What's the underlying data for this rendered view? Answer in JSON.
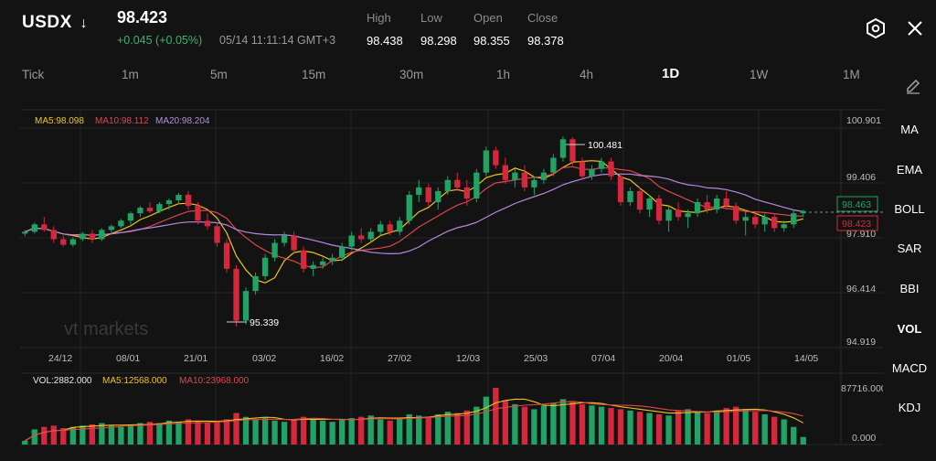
{
  "header": {
    "symbol": "USDX",
    "price": "98.423",
    "change": "+0.045 (+0.05%)",
    "time": "05/14 11:11:14 GMT+3",
    "stats": [
      {
        "label": "High",
        "value": "98.438"
      },
      {
        "label": "Low",
        "value": "98.298"
      },
      {
        "label": "Open",
        "value": "98.355"
      },
      {
        "label": "Close",
        "value": "98.378"
      }
    ]
  },
  "timeframes": [
    "Tick",
    "1m",
    "5m",
    "15m",
    "30m",
    "1h",
    "4h",
    "1D",
    "1W",
    "1M"
  ],
  "active_timeframe": "1D",
  "indicators": [
    "MA",
    "EMA",
    "BOLL",
    "SAR",
    "BBI",
    "VOL",
    "MACD",
    "KDJ"
  ],
  "active_indicator": "VOL",
  "watermark": "vt markets",
  "colors": {
    "up": "#21a366",
    "down": "#d6283d",
    "ma5": "#f0c419",
    "ma10": "#e0454c",
    "ma20": "#b58ae0"
  },
  "price_legend": {
    "ma5": "MA5:98.098",
    "ma10": "MA10:98.112",
    "ma20": "MA20:98.204"
  },
  "volume_legend": {
    "vol": "VOL:2882.000",
    "ma5": "MA5:12568.000",
    "ma10": "MA10:23968.000"
  },
  "chart_data": {
    "type": "candlestick",
    "y_ticks": [
      "100.901",
      "99.406",
      "97.910",
      "96.414",
      "94.919"
    ],
    "ylim": [
      94.919,
      100.901
    ],
    "x_ticks": [
      "24/12",
      "08/01",
      "21/01",
      "03/02",
      "16/02",
      "27/02",
      "12/03",
      "25/03",
      "07/04",
      "20/04",
      "01/05",
      "14/05"
    ],
    "annotations": {
      "high": "100.481",
      "low": "95.339"
    },
    "price_tags": [
      {
        "label": "98.463",
        "color": "up"
      },
      {
        "label": "98.423",
        "color": "down"
      }
    ],
    "volume_ticks": [
      "87716.000",
      "0.000"
    ],
    "candles": [
      [
        97.85,
        97.95,
        97.78,
        97.9
      ],
      [
        97.9,
        98.15,
        97.85,
        98.1
      ],
      [
        98.1,
        98.3,
        97.9,
        97.95
      ],
      [
        97.95,
        98.05,
        97.6,
        97.7
      ],
      [
        97.7,
        97.8,
        97.5,
        97.55
      ],
      [
        97.55,
        97.75,
        97.5,
        97.7
      ],
      [
        97.7,
        97.9,
        97.65,
        97.85
      ],
      [
        97.85,
        97.95,
        97.6,
        97.7
      ],
      [
        97.7,
        98.0,
        97.65,
        97.95
      ],
      [
        97.95,
        98.1,
        97.85,
        98.05
      ],
      [
        98.05,
        98.25,
        98.0,
        98.2
      ],
      [
        98.2,
        98.45,
        98.1,
        98.4
      ],
      [
        98.4,
        98.6,
        98.3,
        98.55
      ],
      [
        98.55,
        98.7,
        98.4,
        98.45
      ],
      [
        98.45,
        98.7,
        98.4,
        98.65
      ],
      [
        98.65,
        98.8,
        98.5,
        98.75
      ],
      [
        98.75,
        98.95,
        98.65,
        98.9
      ],
      [
        98.9,
        99.0,
        98.5,
        98.6
      ],
      [
        98.6,
        98.7,
        98.1,
        98.2
      ],
      [
        98.2,
        98.4,
        97.95,
        98.05
      ],
      [
        98.05,
        98.15,
        97.5,
        97.6
      ],
      [
        97.6,
        97.7,
        96.8,
        96.9
      ],
      [
        96.9,
        97.0,
        95.34,
        95.5
      ],
      [
        95.5,
        96.4,
        95.4,
        96.3
      ],
      [
        96.3,
        96.8,
        96.2,
        96.7
      ],
      [
        96.7,
        97.3,
        96.6,
        97.2
      ],
      [
        97.2,
        97.7,
        97.1,
        97.6
      ],
      [
        97.6,
        97.9,
        97.5,
        97.8
      ],
      [
        97.8,
        97.9,
        97.3,
        97.4
      ],
      [
        97.4,
        97.5,
        96.8,
        96.9
      ],
      [
        96.9,
        97.1,
        96.7,
        97.0
      ],
      [
        97.0,
        97.2,
        96.9,
        97.1
      ],
      [
        97.1,
        97.3,
        97.0,
        97.2
      ],
      [
        97.2,
        97.6,
        97.1,
        97.5
      ],
      [
        97.5,
        97.9,
        97.4,
        97.8
      ],
      [
        97.8,
        98.0,
        97.6,
        97.7
      ],
      [
        97.7,
        98.0,
        97.6,
        97.9
      ],
      [
        97.9,
        98.2,
        97.8,
        98.1
      ],
      [
        98.1,
        98.2,
        97.8,
        97.9
      ],
      [
        97.9,
        98.3,
        97.8,
        98.2
      ],
      [
        98.2,
        99.0,
        98.1,
        98.9
      ],
      [
        98.9,
        99.3,
        98.7,
        99.1
      ],
      [
        99.1,
        99.2,
        98.6,
        98.7
      ],
      [
        98.7,
        99.1,
        98.5,
        99.0
      ],
      [
        99.0,
        99.4,
        98.9,
        99.3
      ],
      [
        99.3,
        99.5,
        99.0,
        99.1
      ],
      [
        99.1,
        99.3,
        98.6,
        98.8
      ],
      [
        98.8,
        99.6,
        98.7,
        99.5
      ],
      [
        99.5,
        100.2,
        99.4,
        100.1
      ],
      [
        100.1,
        100.2,
        99.6,
        99.7
      ],
      [
        99.7,
        99.9,
        99.2,
        99.3
      ],
      [
        99.3,
        99.6,
        99.1,
        99.5
      ],
      [
        99.5,
        99.7,
        99.0,
        99.1
      ],
      [
        99.1,
        99.4,
        98.9,
        99.3
      ],
      [
        99.3,
        99.6,
        99.2,
        99.5
      ],
      [
        99.5,
        100.0,
        99.4,
        99.9
      ],
      [
        99.9,
        100.48,
        99.8,
        100.4
      ],
      [
        100.4,
        100.45,
        99.7,
        99.8
      ],
      [
        99.8,
        99.9,
        99.3,
        99.4
      ],
      [
        99.4,
        99.7,
        99.3,
        99.6
      ],
      [
        99.6,
        99.9,
        99.5,
        99.8
      ],
      [
        99.8,
        99.9,
        99.3,
        99.4
      ],
      [
        99.4,
        99.5,
        98.6,
        98.7
      ],
      [
        98.7,
        99.1,
        98.6,
        99.0
      ],
      [
        99.0,
        99.1,
        98.4,
        98.5
      ],
      [
        98.5,
        98.9,
        98.3,
        98.8
      ],
      [
        98.8,
        98.9,
        98.1,
        98.2
      ],
      [
        98.2,
        98.6,
        97.9,
        98.5
      ],
      [
        98.5,
        98.7,
        98.2,
        98.3
      ],
      [
        98.3,
        98.5,
        98.0,
        98.4
      ],
      [
        98.4,
        98.8,
        98.3,
        98.7
      ],
      [
        98.7,
        98.9,
        98.4,
        98.5
      ],
      [
        98.5,
        98.9,
        98.4,
        98.8
      ],
      [
        98.8,
        99.0,
        98.5,
        98.6
      ],
      [
        98.6,
        98.7,
        98.1,
        98.2
      ],
      [
        98.2,
        98.5,
        97.8,
        98.3
      ],
      [
        98.3,
        98.4,
        98.0,
        98.1
      ],
      [
        98.1,
        98.4,
        97.9,
        98.3
      ],
      [
        98.3,
        98.4,
        97.9,
        98.0
      ],
      [
        98.0,
        98.2,
        97.9,
        98.1
      ],
      [
        98.1,
        98.5,
        98.0,
        98.4
      ],
      [
        98.4,
        98.5,
        98.3,
        98.46
      ]
    ],
    "volumes": [
      3,
      12,
      14,
      15,
      13,
      14,
      15,
      16,
      17,
      15,
      14,
      16,
      17,
      18,
      17,
      19,
      18,
      20,
      19,
      17,
      18,
      20,
      25,
      22,
      20,
      21,
      19,
      18,
      20,
      22,
      21,
      19,
      18,
      20,
      21,
      22,
      23,
      20,
      19,
      21,
      24,
      23,
      22,
      24,
      26,
      25,
      27,
      30,
      38,
      45,
      35,
      32,
      30,
      28,
      31,
      33,
      36,
      34,
      32,
      31,
      30,
      29,
      28,
      27,
      26,
      25,
      24,
      23,
      27,
      28,
      26,
      25,
      27,
      29,
      30,
      28,
      26,
      24,
      22,
      20,
      14,
      6
    ]
  }
}
